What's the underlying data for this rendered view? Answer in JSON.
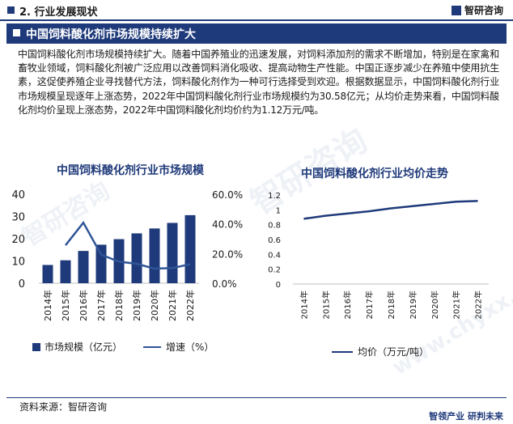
{
  "header": {
    "section": "2. 行业发展现状",
    "logo_text": "智研咨询"
  },
  "banner": {
    "title": "中国饲料酸化剂市场规模持续扩大"
  },
  "paragraph": "中国饲料酸化剂市场规模持续扩大。随着中国养殖业的迅速发展，对饲料添加剂的需求不断增加，特别是在家禽和畜牧业领域，饲料酸化剂被广泛应用以改善饲料消化吸收、提高动物生产性能。中国正逐步减少在养殖中使用抗生素，这促使养殖企业寻找替代方法，饲料酸化剂作为一种可行选择受到欢迎。根据数据显示，中国饲料酸化剂行业市场规模呈现逐年上涨态势，2022年中国饲料酸化剂行业市场规模约为30.58亿元；从均价走势来看，中国饲料酸化剂均价呈现上涨态势，2022年中国饲料酸化剂均价约为1.12万元/吨。",
  "watermark": [
    "智研咨询",
    "www.chyxx.com"
  ],
  "chart_data": [
    {
      "type": "bar",
      "title": "中国饲料酸化剂行业市场规模",
      "categories": [
        "2014年",
        "2015年",
        "2016年",
        "2017年",
        "2018年",
        "2019年",
        "2020年",
        "2021年",
        "2022年"
      ],
      "series": [
        {
          "name": "市场规模（亿元）",
          "type": "bar",
          "axis": "left",
          "color": "#1f3a7a",
          "values": [
            8.2,
            10.3,
            14.5,
            17.3,
            19.8,
            22.4,
            24.6,
            27.1,
            30.58
          ]
        },
        {
          "name": "增速（%）",
          "type": "line",
          "axis": "right",
          "color": "#2f5597",
          "values": [
            null,
            25.6,
            40.8,
            19.3,
            14.5,
            13.1,
            9.8,
            10.2,
            12.8
          ]
        }
      ],
      "left_axis": {
        "ticks": [
          "0",
          "10",
          "20",
          "30",
          "40"
        ],
        "ylim": [
          0,
          40
        ]
      },
      "right_axis": {
        "ticks": [
          "0.0%",
          "20.0%",
          "40.0%",
          "60.0%"
        ],
        "ylim": [
          0,
          60
        ]
      }
    },
    {
      "type": "line",
      "title": "中国饲料酸化剂行业均价走势",
      "categories": [
        "2014年",
        "2015年",
        "2016年",
        "2017年",
        "2018年",
        "2019年",
        "2020年",
        "2021年",
        "2022年"
      ],
      "series": [
        {
          "name": "均价（万元/吨）",
          "color": "#1f3a7a",
          "values": [
            0.88,
            0.92,
            0.95,
            0.98,
            1.02,
            1.05,
            1.08,
            1.11,
            1.12
          ]
        }
      ],
      "y_axis": {
        "ticks": [
          "0",
          "0.2",
          "0.4",
          "0.6",
          "0.8",
          "1",
          "1.2"
        ],
        "ylim": [
          0,
          1.2
        ]
      }
    }
  ],
  "footer": {
    "source": "资料来源：智研咨询",
    "slogan": "智领产业  研判未来"
  }
}
